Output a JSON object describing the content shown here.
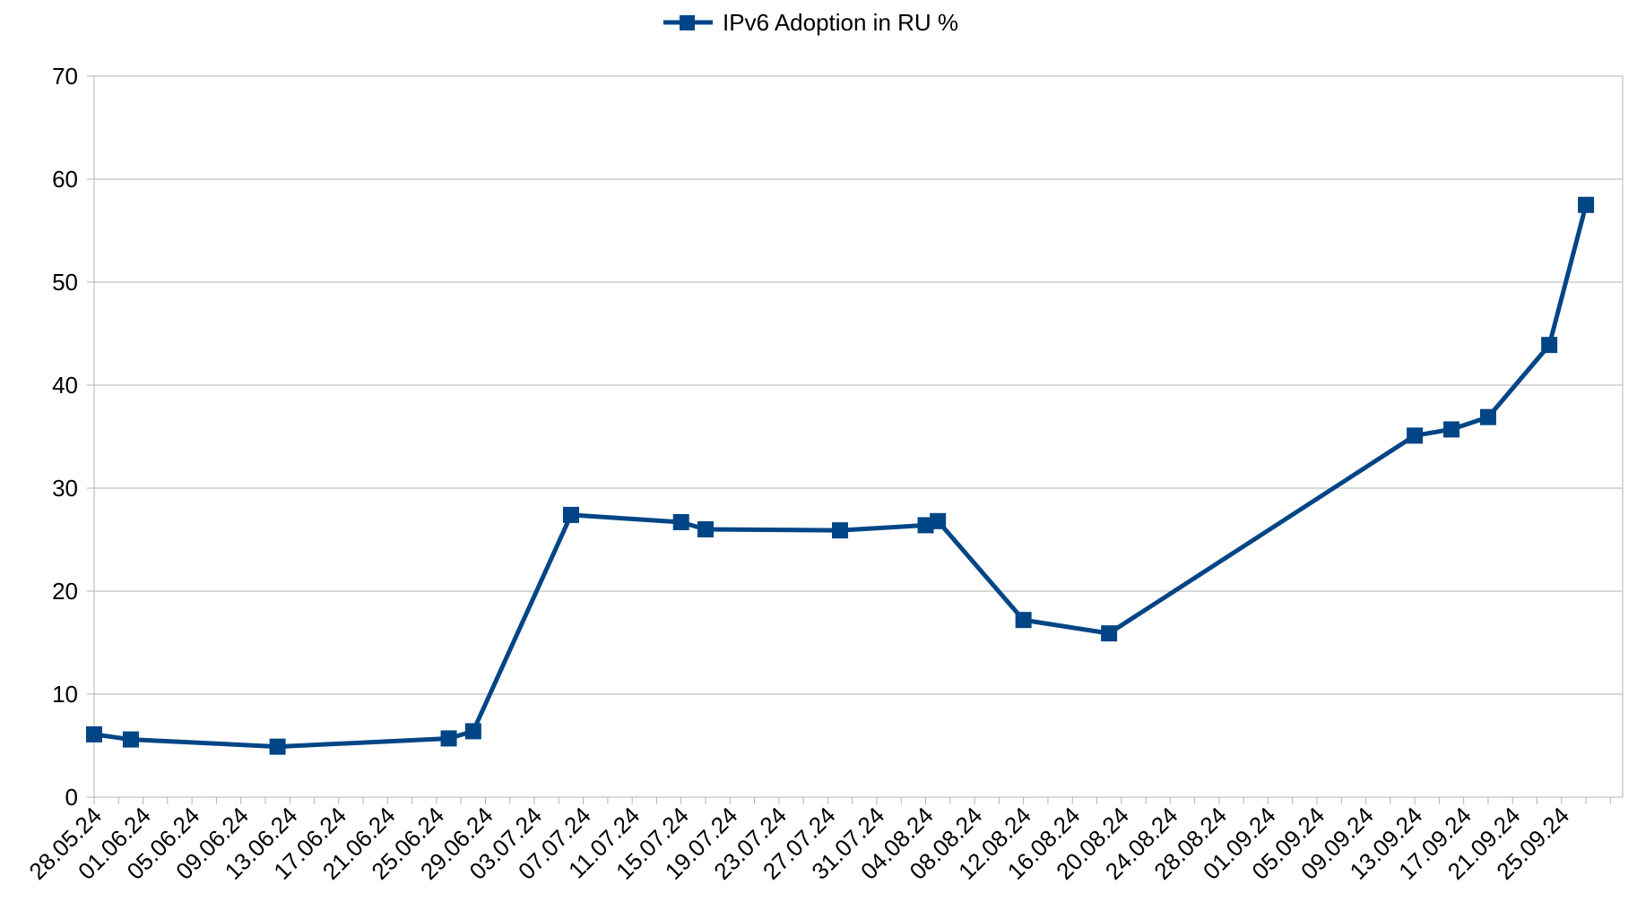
{
  "chart_data": {
    "type": "line",
    "title": "",
    "xlabel": "",
    "ylabel": "",
    "ylim": [
      0,
      70
    ],
    "y_ticks": [
      0,
      10,
      20,
      30,
      40,
      50,
      60,
      70
    ],
    "x_range": [
      "28.05.24",
      "30.09.24"
    ],
    "x_tick_labels": [
      "28.05.24",
      "01.06.24",
      "05.06.24",
      "09.06.24",
      "13.06.24",
      "17.06.24",
      "21.06.24",
      "25.06.24",
      "29.06.24",
      "03.07.24",
      "07.07.24",
      "11.07.24",
      "15.07.24",
      "19.07.24",
      "23.07.24",
      "27.07.24",
      "31.07.24",
      "04.08.24",
      "08.08.24",
      "12.08.24",
      "16.08.24",
      "20.08.24",
      "24.08.24",
      "28.08.24",
      "01.09.24",
      "05.09.24",
      "09.09.24",
      "13.09.24",
      "17.09.24",
      "21.09.24",
      "25.09.24"
    ],
    "grid": true,
    "legend_position": "top-center",
    "series": [
      {
        "name": "IPv6 Adoption in RU %",
        "color": "#004586",
        "marker": "square",
        "points": [
          {
            "x": "28.05.24",
            "y": 6.1
          },
          {
            "x": "31.05.24",
            "y": 5.6
          },
          {
            "x": "12.06.24",
            "y": 4.9
          },
          {
            "x": "26.06.24",
            "y": 5.7
          },
          {
            "x": "28.06.24",
            "y": 6.4
          },
          {
            "x": "06.07.24",
            "y": 27.4
          },
          {
            "x": "15.07.24",
            "y": 26.7
          },
          {
            "x": "17.07.24",
            "y": 26.0
          },
          {
            "x": "28.07.24",
            "y": 25.9
          },
          {
            "x": "04.08.24",
            "y": 26.4
          },
          {
            "x": "05.08.24",
            "y": 26.8
          },
          {
            "x": "12.08.24",
            "y": 17.2
          },
          {
            "x": "19.08.24",
            "y": 15.9
          },
          {
            "x": "13.09.24",
            "y": 35.1
          },
          {
            "x": "16.09.24",
            "y": 35.7
          },
          {
            "x": "19.09.24",
            "y": 36.9
          },
          {
            "x": "24.09.24",
            "y": 43.9
          },
          {
            "x": "27.09.24",
            "y": 57.5
          }
        ]
      }
    ]
  }
}
